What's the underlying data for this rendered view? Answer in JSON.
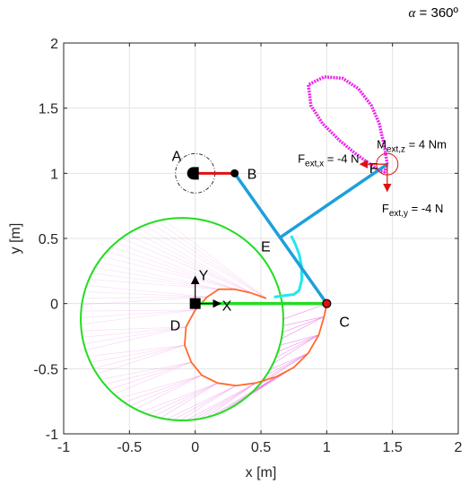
{
  "header": {
    "alpha_symbol": "α",
    "alpha_text": " = 360º"
  },
  "chart_data": {
    "type": "line",
    "xlabel": "x [m]",
    "ylabel": "y [m]",
    "xlim": [
      -1,
      2
    ],
    "ylim": [
      -1,
      2
    ],
    "xticks": [
      -1,
      -0.5,
      0,
      0.5,
      1,
      1.5,
      2
    ],
    "yticks": [
      -1,
      -0.5,
      0,
      0.5,
      1,
      1.5,
      2
    ],
    "xtick_labels": [
      "-1",
      "-0.5",
      "0",
      "0.5",
      "1",
      "1.5",
      "2"
    ],
    "ytick_labels": [
      "-1",
      "-0.5",
      "0",
      "0.5",
      "1",
      "1.5",
      "2"
    ],
    "grid": true,
    "colors": {
      "workspace": "#22dd22",
      "link": "#1ca0dc",
      "inner_curve": "#ff6a2a",
      "trajectory": "#ee22ee",
      "wrist_path": "#22e6f2",
      "crank": "#dd1111",
      "frame_x": "#22cc22",
      "force": "#dd1111",
      "sweep": "#e868e0"
    },
    "points": [
      {
        "label": "A",
        "x": 0.0,
        "y": 1.0
      },
      {
        "label": "B",
        "x": 0.3,
        "y": 1.0
      },
      {
        "label": "C",
        "x": 1.0,
        "y": 0.0
      },
      {
        "label": "D",
        "x": 0.0,
        "y": 0.0
      },
      {
        "label": "E",
        "x": 0.65,
        "y": 0.51
      },
      {
        "label": "F",
        "x": 1.46,
        "y": 1.07
      }
    ],
    "links": [
      {
        "from": [
          0.3,
          1.0
        ],
        "to": [
          1.0,
          0.0
        ]
      },
      {
        "from": [
          0.65,
          0.51
        ],
        "to": [
          1.46,
          1.07
        ]
      }
    ],
    "crank": {
      "from": [
        0.0,
        1.0
      ],
      "to": [
        0.3,
        1.0
      ]
    },
    "workspace_circle": {
      "center": [
        -0.1,
        -0.12
      ],
      "radius": 0.77
    },
    "dashed_circle": {
      "center": [
        0.0,
        1.0
      ],
      "radius": 0.15
    },
    "frame": {
      "origin": [
        0.0,
        0.0
      ],
      "x_axis_label": "X",
      "y_axis_label": "Y",
      "arm_to": [
        1.0,
        0.0
      ]
    },
    "trajectory_loop": [
      [
        1.46,
        1.07
      ],
      [
        1.44,
        1.2
      ],
      [
        1.4,
        1.38
      ],
      [
        1.34,
        1.52
      ],
      [
        1.24,
        1.65
      ],
      [
        1.12,
        1.73
      ],
      [
        0.98,
        1.74
      ],
      [
        0.86,
        1.68
      ],
      [
        0.88,
        1.52
      ],
      [
        0.97,
        1.38
      ],
      [
        1.1,
        1.25
      ],
      [
        1.22,
        1.15
      ],
      [
        1.33,
        1.07
      ],
      [
        1.4,
        1.02
      ],
      [
        1.44,
        1.01
      ],
      [
        1.46,
        1.07
      ]
    ],
    "inner_curve": [
      [
        0.54,
        0.04
      ],
      [
        0.43,
        0.08
      ],
      [
        0.3,
        0.11
      ],
      [
        0.18,
        0.11
      ],
      [
        0.09,
        0.05
      ],
      [
        0.0,
        -0.05
      ],
      [
        -0.07,
        -0.18
      ],
      [
        -0.08,
        -0.32
      ],
      [
        -0.03,
        -0.45
      ],
      [
        0.05,
        -0.55
      ],
      [
        0.17,
        -0.61
      ],
      [
        0.31,
        -0.63
      ],
      [
        0.46,
        -0.61
      ],
      [
        0.62,
        -0.56
      ],
      [
        0.75,
        -0.49
      ],
      [
        0.86,
        -0.38
      ],
      [
        0.94,
        -0.24
      ],
      [
        0.98,
        -0.1
      ],
      [
        1.0,
        0.0
      ]
    ],
    "wrist_path": [
      [
        0.73,
        0.52
      ],
      [
        0.76,
        0.46
      ],
      [
        0.79,
        0.38
      ],
      [
        0.81,
        0.28
      ],
      [
        0.81,
        0.18
      ],
      [
        0.79,
        0.1
      ],
      [
        0.75,
        0.07
      ],
      [
        0.67,
        0.06
      ],
      [
        0.6,
        0.05
      ]
    ],
    "annotations": [
      {
        "text_main": "F",
        "text_sub": "ext,x",
        "text_rest": " = -4 N",
        "x": 0.78,
        "y": 1.08
      },
      {
        "text_main": "M",
        "text_sub": "ext,z",
        "text_rest": " = 4 Nm",
        "x": 1.38,
        "y": 1.19
      },
      {
        "text_main": "F",
        "text_sub": "ext,y",
        "text_rest": " = -4 N",
        "x": 1.42,
        "y": 0.7
      }
    ]
  }
}
